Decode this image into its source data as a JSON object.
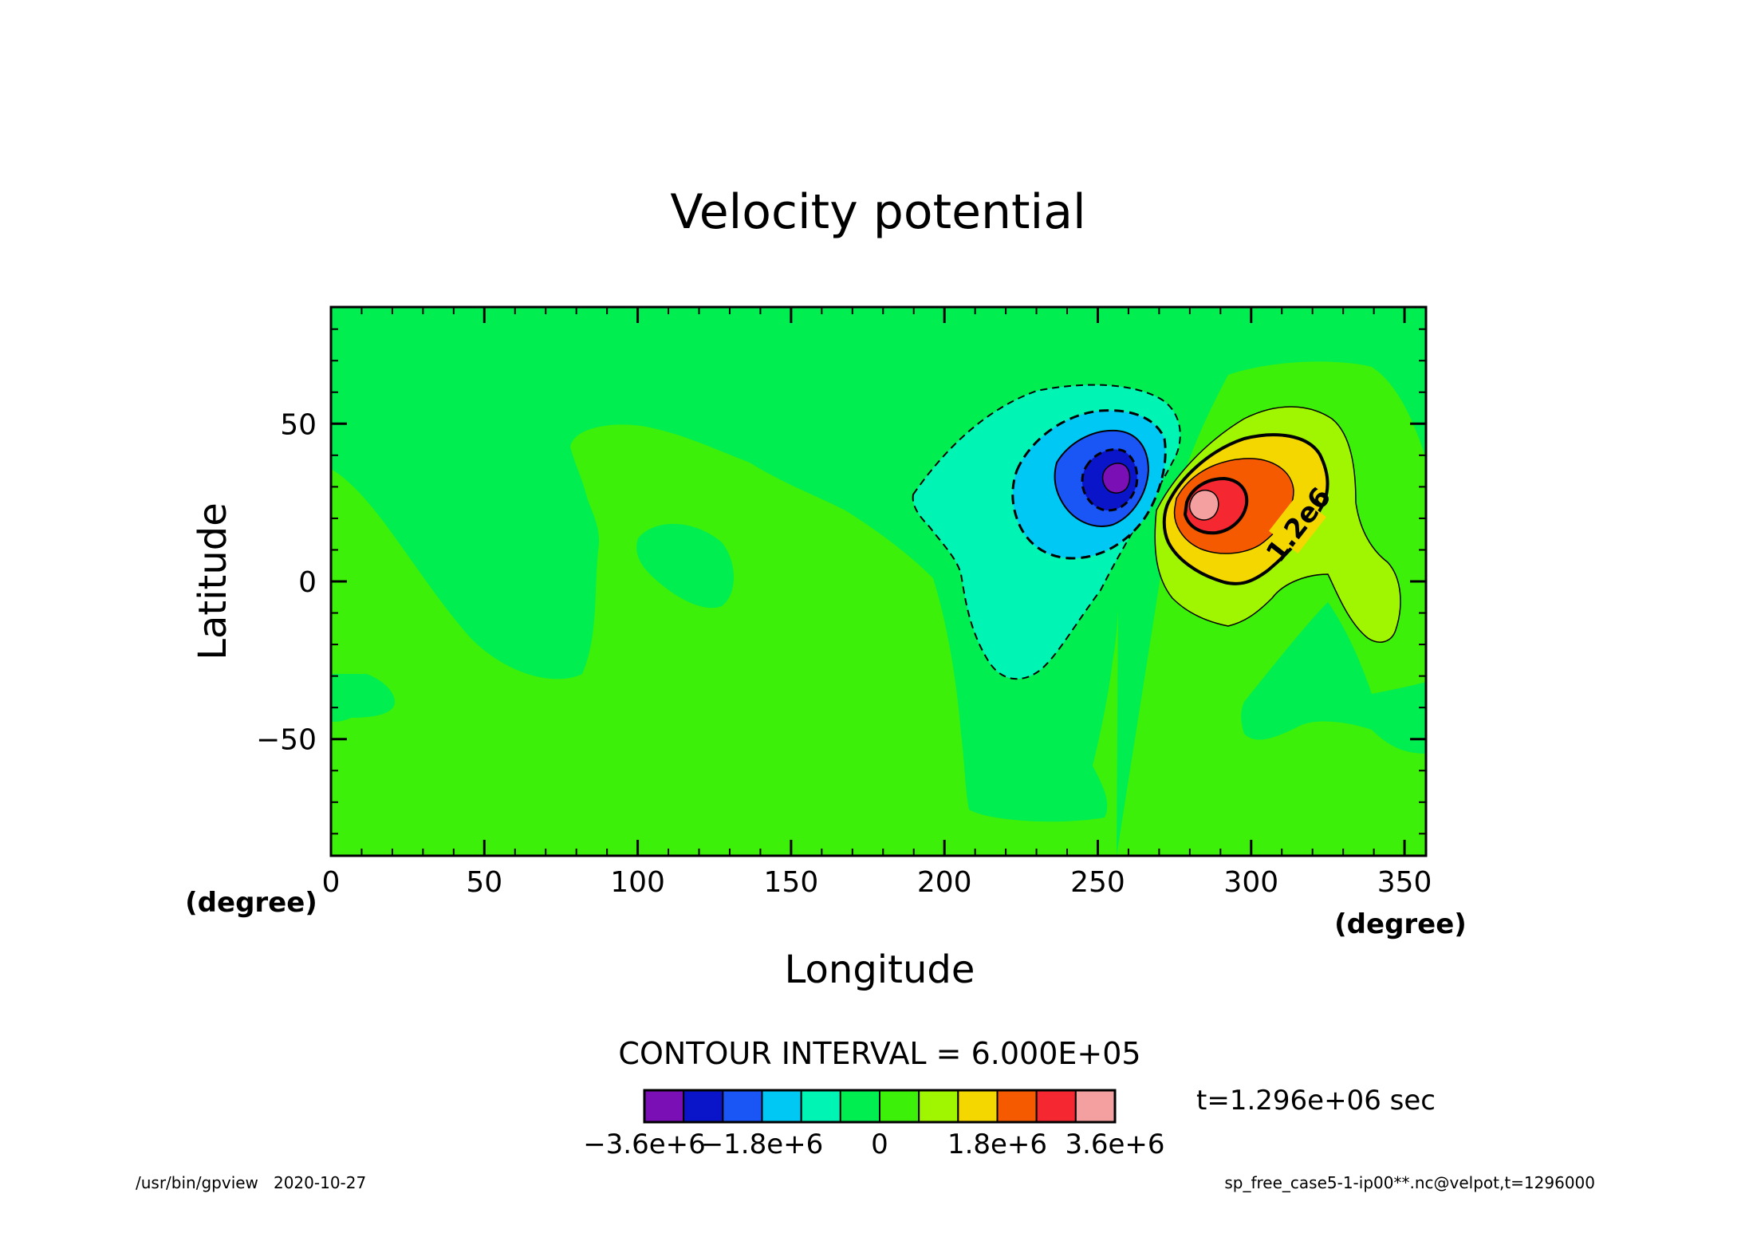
{
  "chart_data": {
    "type": "heatmap",
    "title": "Velocity potential",
    "xlabel": "Longitude",
    "ylabel": "Latitude",
    "x_unit": "(degree)",
    "y_unit": "(degree)",
    "xlim": [
      0,
      357
    ],
    "ylim": [
      -87,
      87
    ],
    "x_ticks": [
      0,
      50,
      100,
      150,
      200,
      250,
      300,
      350
    ],
    "y_ticks": [
      -50,
      0,
      50
    ],
    "x_tick_labels": [
      "0",
      "50",
      "100",
      "150",
      "200",
      "250",
      "300",
      "350"
    ],
    "y_tick_labels": [
      "−50",
      "0",
      "50"
    ],
    "grid": false,
    "contour_interval_label": "CONTOUR INTERVAL = 6.000E+05",
    "contour_interval": 600000,
    "contour_label": "1.2e6",
    "color_levels": [
      -3600000,
      -3000000,
      -2400000,
      -1800000,
      -1200000,
      -600000,
      0,
      600000,
      1200000,
      1800000,
      2400000,
      3000000,
      3600000
    ],
    "colorbar_colors": [
      "#7a0fb5",
      "#0a14c8",
      "#1a55f5",
      "#00c8f5",
      "#00f5b4",
      "#00ee50",
      "#3cf00a",
      "#a0f500",
      "#f5d700",
      "#f55a00",
      "#f52832",
      "#f5a0a0"
    ],
    "colorbar_tick_labels": [
      "−3.6e+6",
      "−1.8e+6",
      "0",
      "1.8e+6",
      "3.6e+6"
    ],
    "field_centers": [
      {
        "name": "minimum",
        "lon": 257,
        "lat": 35,
        "value": -3200000
      },
      {
        "name": "maximum",
        "lon": 284,
        "lat": 24,
        "value": 3400000
      }
    ],
    "time_label": "t=1.296e+06 sec"
  },
  "footer": {
    "left": "/usr/bin/gpview   2020-10-27",
    "right": "sp_free_case5-1-ip00**.nc@velpot,t=1296000"
  }
}
